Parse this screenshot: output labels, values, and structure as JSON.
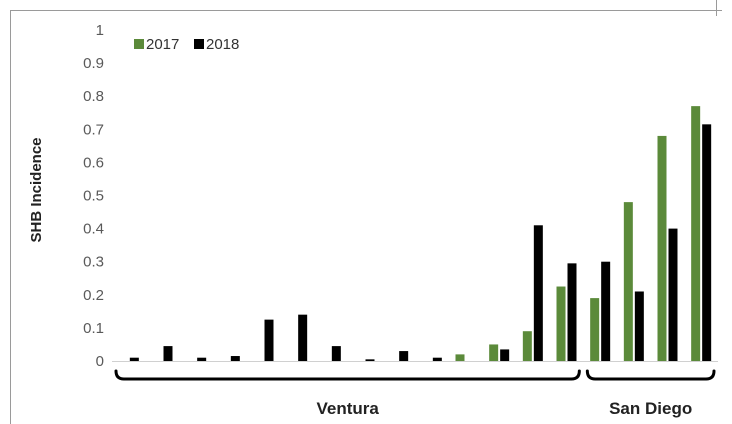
{
  "chart_data": {
    "type": "bar",
    "ylabel": "SHB Incidence",
    "ylim": [
      0,
      1
    ],
    "yticks": [
      "0",
      "0.1",
      "0.2",
      "0.3",
      "0.4",
      "0.5",
      "0.6",
      "0.7",
      "0.8",
      "0.9",
      "1"
    ],
    "legend": {
      "placement": "top-left",
      "entries": [
        "2017",
        "2018"
      ]
    },
    "colors": {
      "2017": "#5b8a3a",
      "2018": "#000000"
    },
    "series": [
      {
        "name": "2017",
        "values": [
          null,
          null,
          null,
          null,
          null,
          null,
          null,
          null,
          null,
          null,
          0.02,
          0.05,
          0.09,
          0.225,
          0.19,
          0.48,
          0.68,
          0.77
        ]
      },
      {
        "name": "2018",
        "values": [
          0.01,
          0.045,
          0.01,
          0.015,
          0.125,
          0.14,
          0.045,
          0.005,
          0.03,
          0.01,
          null,
          0.035,
          0.41,
          0.295,
          0.3,
          0.21,
          0.4,
          0.715
        ]
      }
    ],
    "groups": [
      {
        "label": "Ventura",
        "start": 0,
        "end": 13
      },
      {
        "label": "San Diego",
        "start": 14,
        "end": 17
      }
    ]
  }
}
